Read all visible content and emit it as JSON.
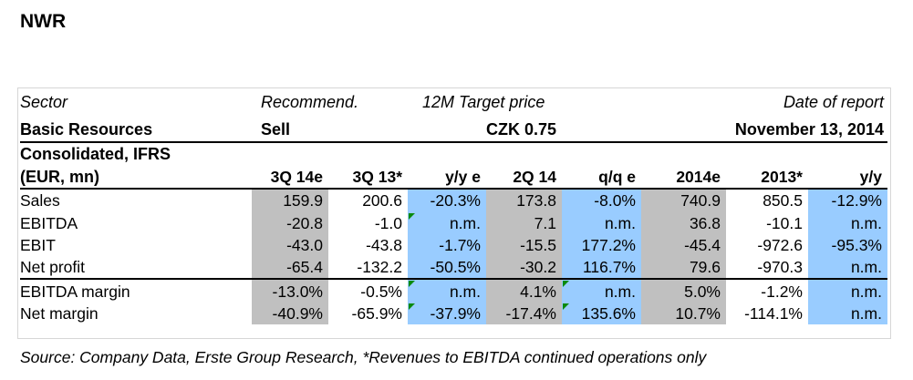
{
  "title": "NWR",
  "header": {
    "sector_label": "Sector",
    "recommend_label": "Recommend.",
    "target_label": "12M Target price",
    "date_label": "Date of report",
    "sector_value": "Basic Resources",
    "recommend_value": "Sell",
    "target_value": "CZK 0.75",
    "date_value": "November 13, 2014",
    "basis_line1": "Consolidated, IFRS",
    "basis_line2": "(EUR, mn)"
  },
  "table": {
    "columns": [
      "3Q 14e",
      "3Q 13*",
      "y/y e",
      "2Q 14",
      "q/q e",
      "2014e",
      "2013*",
      "y/y"
    ],
    "rows": [
      {
        "label": "Sales",
        "cells": [
          "159.9",
          "200.6",
          "-20.3%",
          "173.8",
          "-8.0%",
          "740.9",
          "850.5",
          "-12.9%"
        ]
      },
      {
        "label": "EBITDA",
        "cells": [
          "-20.8",
          "-1.0",
          "n.m.",
          "7.1",
          "n.m.",
          "36.8",
          "-10.1",
          "n.m."
        ]
      },
      {
        "label": "EBIT",
        "cells": [
          "-43.0",
          "-43.8",
          "-1.7%",
          "-15.5",
          "177.2%",
          "-45.4",
          "-972.6",
          "-95.3%"
        ]
      },
      {
        "label": "Net profit",
        "cells": [
          "-65.4",
          "-132.2",
          "-50.5%",
          "-30.2",
          "116.7%",
          "79.6",
          "-970.3",
          "n.m."
        ]
      },
      {
        "label": "EBITDA margin",
        "cells": [
          "-13.0%",
          "-0.5%",
          "n.m.",
          "4.1%",
          "n.m.",
          "5.0%",
          "-1.2%",
          "n.m."
        ]
      },
      {
        "label": "Net margin",
        "cells": [
          "-40.9%",
          "-65.9%",
          "-37.9%",
          "-17.4%",
          "135.6%",
          "10.7%",
          "-114.1%",
          "n.m."
        ]
      }
    ]
  },
  "source": "Source: Company Data, Erste Group Research, *Revenues to EBITDA continued operations only",
  "colors": {
    "shade_gray": "#c0c0c0",
    "shade_blue": "#99ccff",
    "comment_marker": "#0a8a0a"
  }
}
